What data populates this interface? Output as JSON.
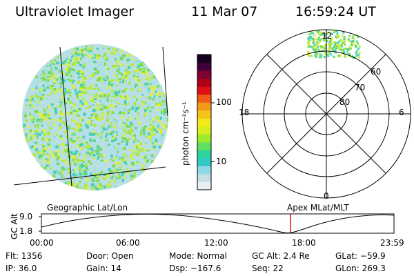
{
  "header": {
    "title": "Ultraviolet Imager",
    "date": "11 Mar 07",
    "time": "16:59:24 UT"
  },
  "colorbar": {
    "unit_label": "photon cm⁻²s⁻¹",
    "tick_100": "100",
    "tick_10": "10",
    "colors": [
      "#e8eef2",
      "#c8dde6",
      "#8fd8e8",
      "#33c8c8",
      "#2fd3a0",
      "#5fe060",
      "#a0ea2c",
      "#d4ee1e",
      "#f3e91a",
      "#f4c41a",
      "#f29a18",
      "#ef5a14",
      "#e01014",
      "#b00018",
      "#800030",
      "#400040",
      "#180020"
    ]
  },
  "geo_panel": {
    "label": "Geographic Lat/Lon"
  },
  "polar_panel": {
    "label": "Apex MLat/MLT",
    "mlt_labels": {
      "top": "12",
      "left": "18",
      "right": "6",
      "bottom": "0"
    },
    "lat_labels": [
      "60",
      "70",
      "80"
    ]
  },
  "altitude_plot": {
    "ylabel": "GC Alt",
    "ymax": "9.0",
    "ymin": "1.8",
    "x_ticks": [
      "00:00",
      "06:00",
      "12:00",
      "18:00",
      "23:59"
    ],
    "marker_color": "#e01010"
  },
  "status": {
    "flt": "Flt: 1356",
    "ip": "IP: 36.0",
    "door": "Door: Open",
    "gain": "Gain: 14",
    "mode": "Mode: Normal",
    "dsp": "Dsp: −167.6",
    "gc_alt": "GC Alt: 2.4 Re",
    "seq": "Seq: 22",
    "glat": "GLat: −59.9",
    "glon": "GLon: 269.3"
  }
}
